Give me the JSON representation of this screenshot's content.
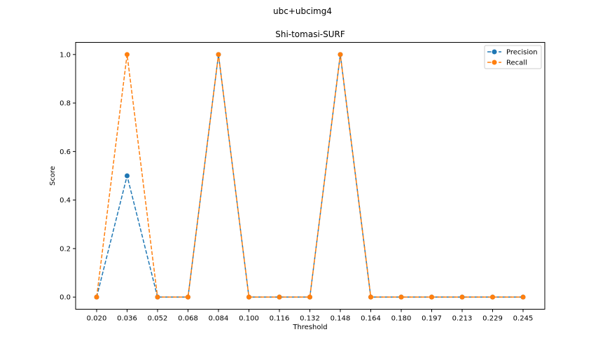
{
  "chart_data": {
    "type": "line",
    "suptitle": "ubc+ubcimg4",
    "title": "Shi-tomasi-SURF",
    "xlabel": "Threshold",
    "ylabel": "Score",
    "x": [
      "0.020",
      "0.036",
      "0.052",
      "0.068",
      "0.084",
      "0.100",
      "0.116",
      "0.132",
      "0.148",
      "0.164",
      "0.180",
      "0.197",
      "0.213",
      "0.229",
      "0.245"
    ],
    "ylim": [
      -0.05,
      1.05
    ],
    "yticks": [
      "0.0",
      "0.2",
      "0.4",
      "0.6",
      "0.8",
      "1.0"
    ],
    "grid": false,
    "legend_position": "top-right",
    "series": [
      {
        "name": "Precision",
        "color": "#1f77b4",
        "values": [
          0,
          0.5,
          0,
          0,
          1,
          0,
          0,
          0,
          1,
          0,
          0,
          0,
          0,
          0,
          0
        ]
      },
      {
        "name": "Recall",
        "color": "#ff7f0e",
        "values": [
          0,
          1,
          0,
          0,
          1,
          0,
          0,
          0,
          1,
          0,
          0,
          0,
          0,
          0,
          0
        ]
      }
    ]
  }
}
